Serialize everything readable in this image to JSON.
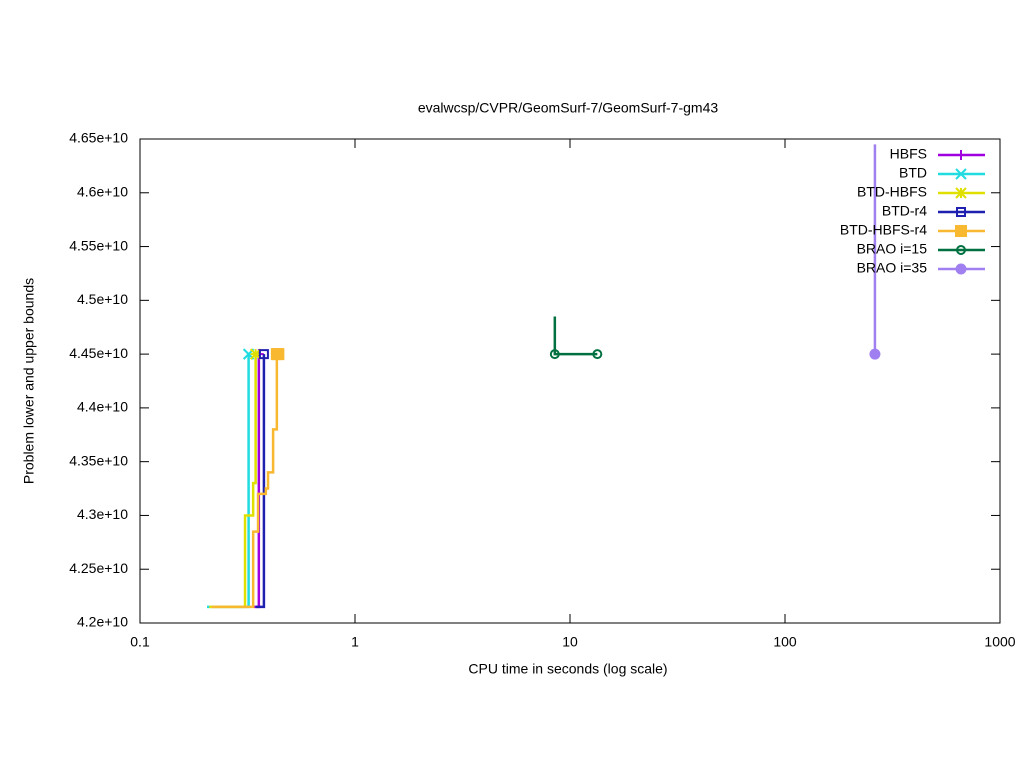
{
  "chart_data": {
    "type": "step",
    "title": "evalwcsp/CVPR/GeomSurf-7/GeomSurf-7-gm43",
    "x_label": "CPU time in seconds (log scale)",
    "y_label": "Problem lower and upper bounds",
    "xscale": "log",
    "xlim": [
      0.1,
      1000
    ],
    "xticks": [
      0.1,
      1,
      10,
      100,
      1000
    ],
    "ylim": [
      42000000000,
      46500000000
    ],
    "yticks": [
      {
        "value": 42000000000,
        "label": "4.2e+10"
      },
      {
        "value": 42500000000,
        "label": "4.25e+10"
      },
      {
        "value": 43000000000,
        "label": "4.3e+10"
      },
      {
        "value": 43500000000,
        "label": "4.35e+10"
      },
      {
        "value": 44000000000,
        "label": "4.4e+10"
      },
      {
        "value": 44500000000,
        "label": "4.45e+10"
      },
      {
        "value": 45000000000,
        "label": "4.5e+10"
      },
      {
        "value": 45500000000,
        "label": "4.55e+10"
      },
      {
        "value": 46000000000,
        "label": "4.6e+10"
      },
      {
        "value": 46500000000,
        "label": "4.65e+10"
      }
    ],
    "legend": "top-right",
    "series": [
      {
        "name": "HBFS",
        "color": "#a000e0",
        "marker": "plus",
        "x": [
          0.34,
          0.357
        ],
        "values": [
          42150000000,
          44500000000
        ]
      },
      {
        "name": "BTD",
        "color": "#20dce0",
        "marker": "cross",
        "x": [
          0.205,
          0.32
        ],
        "values": [
          42150000000,
          44500000000
        ]
      },
      {
        "name": "BTD-HBFS",
        "color": "#e0e000",
        "marker": "star",
        "x": [
          0.21,
          0.308,
          0.336,
          0.345
        ],
        "values": [
          42150000000,
          43000000000,
          43300000000,
          44500000000
        ]
      },
      {
        "name": "BTD-r4",
        "color": "#2020b0",
        "marker": "square",
        "x": [
          0.345,
          0.377,
          0.377
        ],
        "values": [
          42150000000,
          43200000000,
          44500000000
        ]
      },
      {
        "name": "BTD-HBFS-r4",
        "color": "#f8b830",
        "marker": "filled-square",
        "x": [
          0.215,
          0.336,
          0.354,
          0.385,
          0.394,
          0.416,
          0.433,
          0.44
        ],
        "values": [
          42150000000,
          42850000000,
          43200000000,
          43250000000,
          43400000000,
          43800000000,
          44500000000,
          44500000000
        ]
      },
      {
        "name": "BRAO i=15",
        "color": "#007040",
        "marker": "circle",
        "x": [
          8.5,
          8.5,
          13.4
        ],
        "values": [
          44850000000,
          44500000000,
          44500000000
        ]
      },
      {
        "name": "BRAO i=35",
        "color": "#a080f0",
        "marker": "filled-circle",
        "x": [
          262,
          262
        ],
        "values": [
          46450000000,
          44500000000
        ]
      }
    ]
  }
}
